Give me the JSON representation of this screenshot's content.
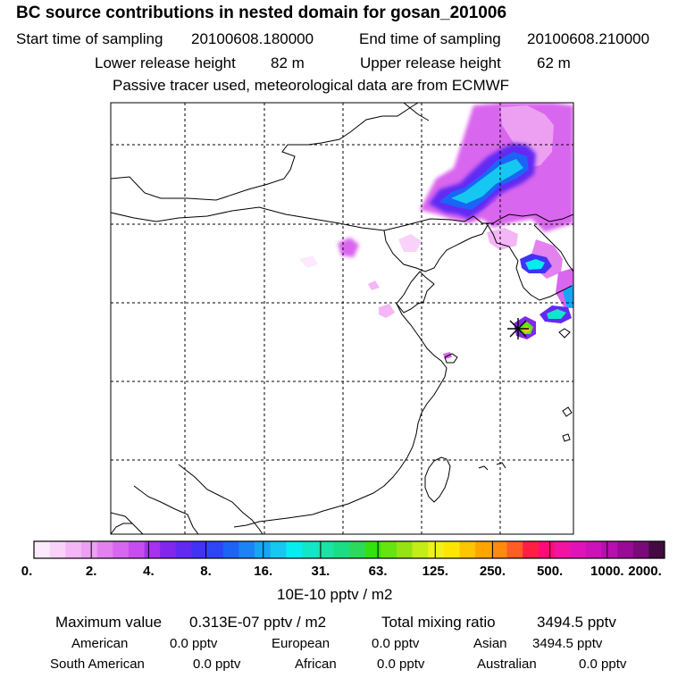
{
  "header": {
    "title": "BC  source contributions in nested domain for gosan_201006",
    "start_label": "Start time of sampling",
    "start_value": "20100608.180000",
    "end_label": "End time of sampling",
    "end_value": "20100608.210000",
    "lower_label": "Lower release height",
    "lower_value": "82 m",
    "upper_label": "Upper release height",
    "upper_value": "62 m",
    "note": "Passive tracer used, meteorological data are from ECMWF"
  },
  "colorbar": {
    "colors": [
      "#fde9fd",
      "#f9d2fa",
      "#f4b6f6",
      "#eda0f1",
      "#e382ef",
      "#d966ee",
      "#c84df0",
      "#a631ef",
      "#8226ee",
      "#6229f3",
      "#4232f4",
      "#2c46f5",
      "#1c64f6",
      "#1a84f6",
      "#15a6f4",
      "#16c7f2",
      "#05edee",
      "#11e6c8",
      "#1be3a5",
      "#19de84",
      "#2dd95a",
      "#32e20d",
      "#66e40f",
      "#95e313",
      "#c4ec16",
      "#eef11a",
      "#ffe600",
      "#ffc500",
      "#ffa500",
      "#ff8a10",
      "#ff5d24",
      "#ff1e44",
      "#ff0a78",
      "#f212a3",
      "#e013b8",
      "#cc12b9",
      "#b80eb0",
      "#9a0a95",
      "#7a0a7a",
      "#440a44"
    ],
    "labels": [
      "0.",
      "2.",
      "4.",
      "8.",
      "16.",
      "31.",
      "63.",
      "125.",
      "250.",
      "500.",
      "1000.",
      "2000."
    ],
    "unit": "10E-10 pptv / m2"
  },
  "stats": {
    "max_label": "Maximum value",
    "max_value": "0.313E-07 pptv / m2",
    "total_label": "Total mixing ratio",
    "total_value": "3494.5 pptv",
    "american_label": "American",
    "american_value": "0.0 pptv",
    "european_label": "European",
    "european_value": "0.0 pptv",
    "asian_label": "Asian",
    "asian_value": "3494.5 pptv",
    "south_american_label": "South American",
    "south_american_value": "0.0 pptv",
    "african_label": "African",
    "african_value": "0.0 pptv",
    "australian_label": "Australian",
    "australian_value": "0.0 pptv"
  }
}
